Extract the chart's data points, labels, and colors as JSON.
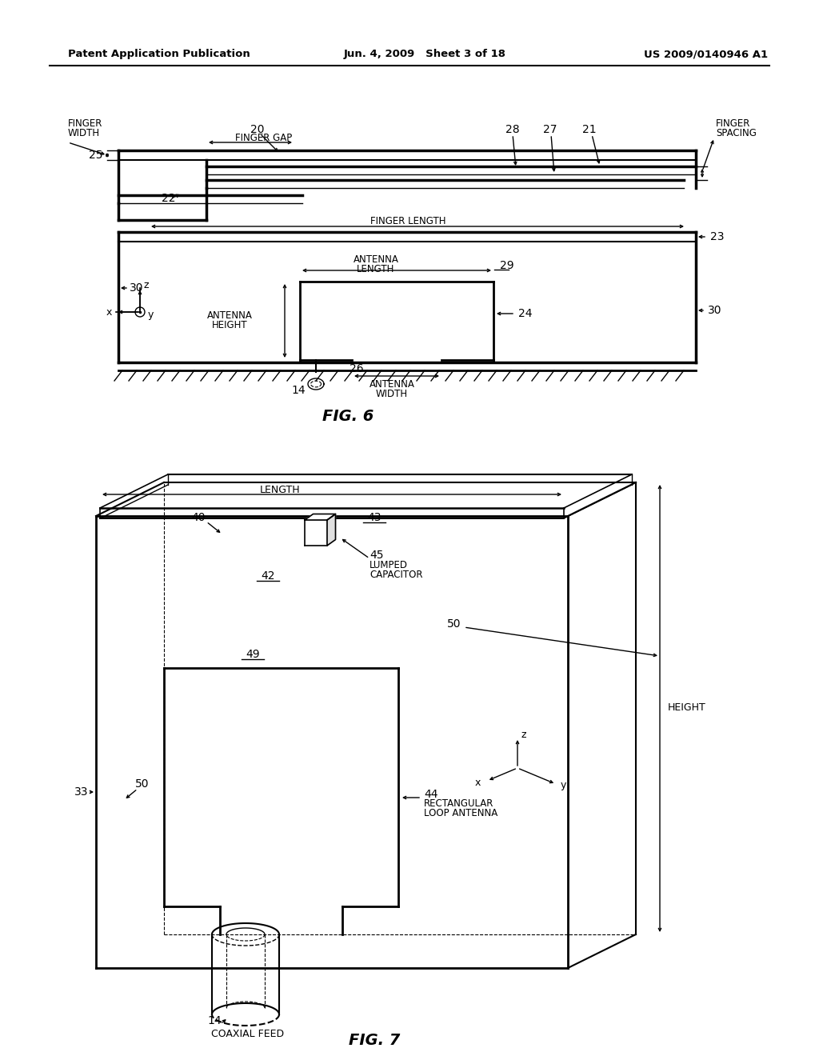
{
  "bg_color": "#ffffff",
  "header_left": "Patent Application Publication",
  "header_mid": "Jun. 4, 2009   Sheet 3 of 18",
  "header_right": "US 2009/0140946 A1",
  "fig6_title": "FIG. 6",
  "fig7_title": "FIG. 7",
  "lc": "#000000",
  "tc": "#000000"
}
